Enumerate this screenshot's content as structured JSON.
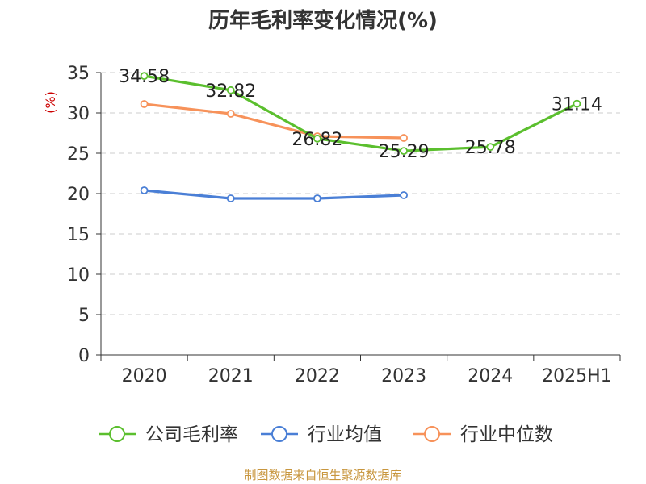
{
  "chart_data": {
    "type": "line",
    "title": "历年毛利率变化情况(%)",
    "ylabel": "(%)",
    "categories": [
      "2020",
      "2021",
      "2022",
      "2023",
      "2024",
      "2025H1"
    ],
    "ylim": [
      0,
      35
    ],
    "yticks": [
      "0",
      "5",
      "10",
      "15",
      "20",
      "25",
      "30",
      "35"
    ],
    "grid": true,
    "legend_position": "bottom",
    "series": [
      {
        "name": "公司毛利率",
        "color": "#5bbf2e",
        "labeled": true,
        "values": [
          34.58,
          32.82,
          26.82,
          25.29,
          25.78,
          31.14
        ],
        "labels": [
          "34.58",
          "32.82",
          "26.82",
          "25.29",
          "25.78",
          "31.14"
        ]
      },
      {
        "name": "行业均值",
        "color": "#4a7fd6",
        "labeled": false,
        "values": [
          20.4,
          19.4,
          19.4,
          19.8,
          null,
          null
        ]
      },
      {
        "name": "行业中位数",
        "color": "#f7925a",
        "labeled": false,
        "values": [
          31.1,
          29.9,
          27.1,
          26.9,
          null,
          null
        ]
      }
    ]
  },
  "footer": {
    "source": "制图数据来自恒生聚源数据库"
  }
}
